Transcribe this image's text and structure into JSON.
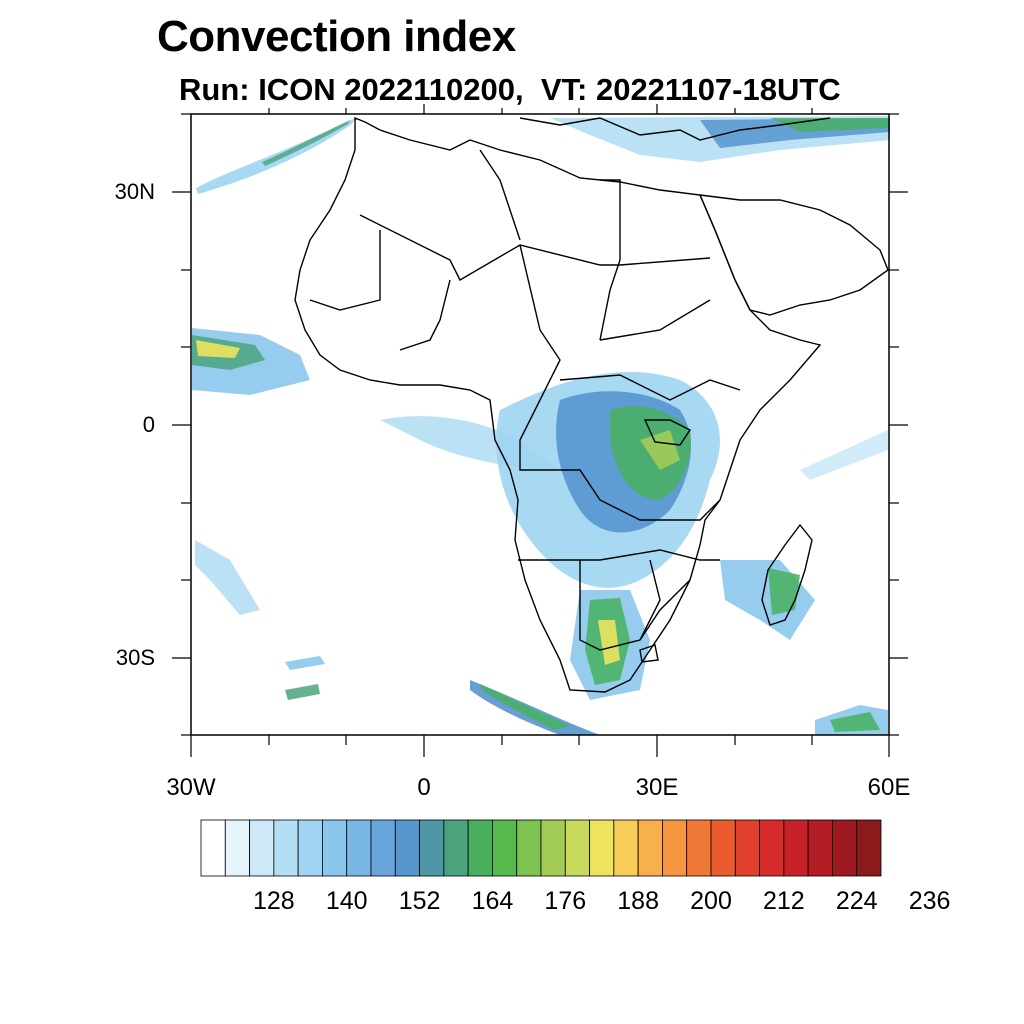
{
  "title": "Convection index",
  "subtitle": "Run: ICON 2022110200,  VT: 20221107-18UTC",
  "axes": {
    "lat_labels": [
      "30N",
      "0",
      "30S"
    ],
    "lon_labels": [
      "30W",
      "0",
      "30E",
      "60E"
    ]
  },
  "colorbar": {
    "colors": [
      "#ffffff",
      "#e6f4fb",
      "#cde9f7",
      "#b4def4",
      "#9fd5f2",
      "#8bc7ec",
      "#78b6e4",
      "#67a5dc",
      "#5795cf",
      "#4e97a6",
      "#4ba37e",
      "#48b05d",
      "#55b94c",
      "#7cc352",
      "#a2cc56",
      "#c9d95c",
      "#ede35e",
      "#f7cc57",
      "#f7b04c",
      "#f59541",
      "#f17938",
      "#ea5c30",
      "#e2402c",
      "#d82b2b",
      "#c62129",
      "#b11c25",
      "#9e1a21",
      "#8a1a1c"
    ],
    "labels": [
      "128",
      "140",
      "152",
      "164",
      "176",
      "188",
      "200",
      "212",
      "224",
      "236"
    ]
  },
  "map": {
    "land_color": "#ffffff",
    "border_color": "#000000"
  }
}
